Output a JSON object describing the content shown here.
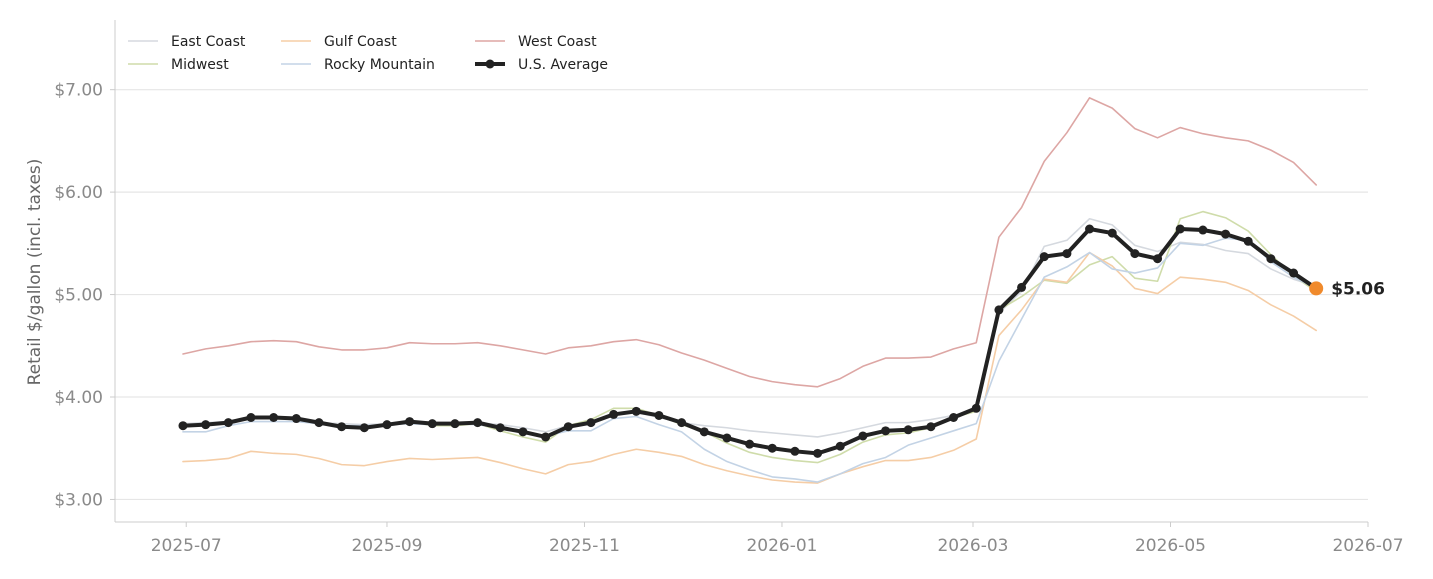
{
  "chart_data": {
    "type": "line",
    "title": "",
    "xlabel": "",
    "ylabel": "Retail $/gallon (incl. taxes)",
    "xlim": [
      "2025-06-09",
      "2026-07-01"
    ],
    "ylim": [
      2.78,
      7.68
    ],
    "grid": "horizontal",
    "legend_position": "top-left",
    "x_ticks": [
      "2025-07",
      "2025-09",
      "2025-11",
      "2026-01",
      "2026-03",
      "2026-05",
      "2026-07"
    ],
    "y_ticks": [
      3.0,
      4.0,
      5.0,
      6.0,
      7.0
    ],
    "y_tick_labels": [
      "$3.00",
      "$4.00",
      "$5.00",
      "$6.00",
      "$7.00"
    ],
    "x": [
      "2025-06-30",
      "2025-07-07",
      "2025-07-14",
      "2025-07-21",
      "2025-07-28",
      "2025-08-04",
      "2025-08-11",
      "2025-08-18",
      "2025-08-25",
      "2025-09-01",
      "2025-09-08",
      "2025-09-15",
      "2025-09-22",
      "2025-09-29",
      "2025-10-06",
      "2025-10-13",
      "2025-10-20",
      "2025-10-27",
      "2025-11-03",
      "2025-11-10",
      "2025-11-17",
      "2025-11-24",
      "2025-12-01",
      "2025-12-08",
      "2025-12-15",
      "2025-12-22",
      "2025-12-29",
      "2026-01-05",
      "2026-01-12",
      "2026-01-19",
      "2026-01-26",
      "2026-02-02",
      "2026-02-09",
      "2026-02-16",
      "2026-02-23",
      "2026-03-02",
      "2026-03-09",
      "2026-03-16",
      "2026-03-23",
      "2026-03-30",
      "2026-04-06",
      "2026-04-13",
      "2026-04-20",
      "2026-04-27",
      "2026-05-04",
      "2026-05-11",
      "2026-05-18",
      "2026-05-25",
      "2026-06-01",
      "2026-06-08",
      "2026-06-15"
    ],
    "series": [
      {
        "name": "East Coast",
        "color": "#d5d9df",
        "emphasis": false,
        "values": [
          3.74,
          3.75,
          3.76,
          3.8,
          3.79,
          3.78,
          3.75,
          3.74,
          3.73,
          3.74,
          3.76,
          3.75,
          3.75,
          3.75,
          3.73,
          3.7,
          3.66,
          3.72,
          3.74,
          3.83,
          3.85,
          3.8,
          3.75,
          3.72,
          3.7,
          3.67,
          3.65,
          3.63,
          3.61,
          3.65,
          3.7,
          3.75,
          3.75,
          3.78,
          3.82,
          3.88,
          4.82,
          5.03,
          5.47,
          5.53,
          5.74,
          5.68,
          5.48,
          5.42,
          5.51,
          5.49,
          5.43,
          5.4,
          5.25,
          5.15,
          5.08
        ]
      },
      {
        "name": "Midwest",
        "color": "#cfdcaa",
        "emphasis": false,
        "values": [
          3.72,
          3.73,
          3.74,
          3.8,
          3.79,
          3.78,
          3.74,
          3.72,
          3.71,
          3.74,
          3.76,
          3.72,
          3.72,
          3.74,
          3.67,
          3.61,
          3.56,
          3.72,
          3.78,
          3.89,
          3.89,
          3.82,
          3.73,
          3.66,
          3.55,
          3.46,
          3.41,
          3.38,
          3.36,
          3.44,
          3.56,
          3.63,
          3.65,
          3.7,
          3.8,
          3.86,
          4.85,
          4.98,
          5.14,
          5.11,
          5.29,
          5.37,
          5.16,
          5.13,
          5.74,
          5.81,
          5.75,
          5.62,
          5.39,
          5.18,
          5.03
        ]
      },
      {
        "name": "Gulf Coast",
        "color": "#f5cda6",
        "emphasis": false,
        "values": [
          3.37,
          3.38,
          3.4,
          3.47,
          3.45,
          3.44,
          3.4,
          3.34,
          3.33,
          3.37,
          3.4,
          3.39,
          3.4,
          3.41,
          3.36,
          3.3,
          3.25,
          3.34,
          3.37,
          3.44,
          3.49,
          3.46,
          3.42,
          3.34,
          3.28,
          3.23,
          3.19,
          3.17,
          3.16,
          3.25,
          3.32,
          3.38,
          3.38,
          3.41,
          3.48,
          3.59,
          4.6,
          4.85,
          5.15,
          5.12,
          5.41,
          5.28,
          5.06,
          5.01,
          5.17,
          5.15,
          5.12,
          5.04,
          4.9,
          4.79,
          4.65
        ]
      },
      {
        "name": "Rocky Mountain",
        "color": "#c3d3e5",
        "emphasis": false,
        "values": [
          3.66,
          3.66,
          3.72,
          3.76,
          3.76,
          3.76,
          3.74,
          3.72,
          3.72,
          3.73,
          3.74,
          3.73,
          3.74,
          3.73,
          3.7,
          3.65,
          3.62,
          3.67,
          3.67,
          3.79,
          3.81,
          3.73,
          3.66,
          3.49,
          3.37,
          3.29,
          3.22,
          3.2,
          3.17,
          3.25,
          3.35,
          3.41,
          3.53,
          3.6,
          3.67,
          3.74,
          4.35,
          4.76,
          5.17,
          5.27,
          5.41,
          5.25,
          5.21,
          5.26,
          5.5,
          5.48,
          5.55,
          5.53,
          5.32,
          5.17,
          5.06
        ]
      },
      {
        "name": "West Coast",
        "color": "#dda6a4",
        "emphasis": false,
        "values": [
          4.42,
          4.47,
          4.5,
          4.54,
          4.55,
          4.54,
          4.49,
          4.46,
          4.46,
          4.48,
          4.53,
          4.52,
          4.52,
          4.53,
          4.5,
          4.46,
          4.42,
          4.48,
          4.5,
          4.54,
          4.56,
          4.51,
          4.43,
          4.36,
          4.28,
          4.2,
          4.15,
          4.12,
          4.1,
          4.18,
          4.3,
          4.38,
          4.38,
          4.39,
          4.47,
          4.53,
          5.56,
          5.85,
          6.3,
          6.58,
          6.92,
          6.82,
          6.62,
          6.53,
          6.63,
          6.57,
          6.53,
          6.5,
          6.41,
          6.29,
          6.07
        ]
      },
      {
        "name": "U.S. Average",
        "color": "#222222",
        "emphasis": true,
        "values": [
          3.72,
          3.73,
          3.75,
          3.8,
          3.8,
          3.79,
          3.75,
          3.71,
          3.7,
          3.73,
          3.76,
          3.74,
          3.74,
          3.75,
          3.7,
          3.66,
          3.61,
          3.71,
          3.75,
          3.83,
          3.86,
          3.82,
          3.75,
          3.66,
          3.6,
          3.54,
          3.5,
          3.47,
          3.45,
          3.52,
          3.62,
          3.67,
          3.68,
          3.71,
          3.8,
          3.89,
          4.85,
          5.07,
          5.37,
          5.4,
          5.64,
          5.6,
          5.4,
          5.35,
          5.64,
          5.63,
          5.59,
          5.52,
          5.35,
          5.21,
          5.06
        ]
      }
    ],
    "end_marker": {
      "date": "2026-06-15",
      "value": 5.06,
      "label": "$5.06",
      "color": "#f08a2c"
    }
  }
}
